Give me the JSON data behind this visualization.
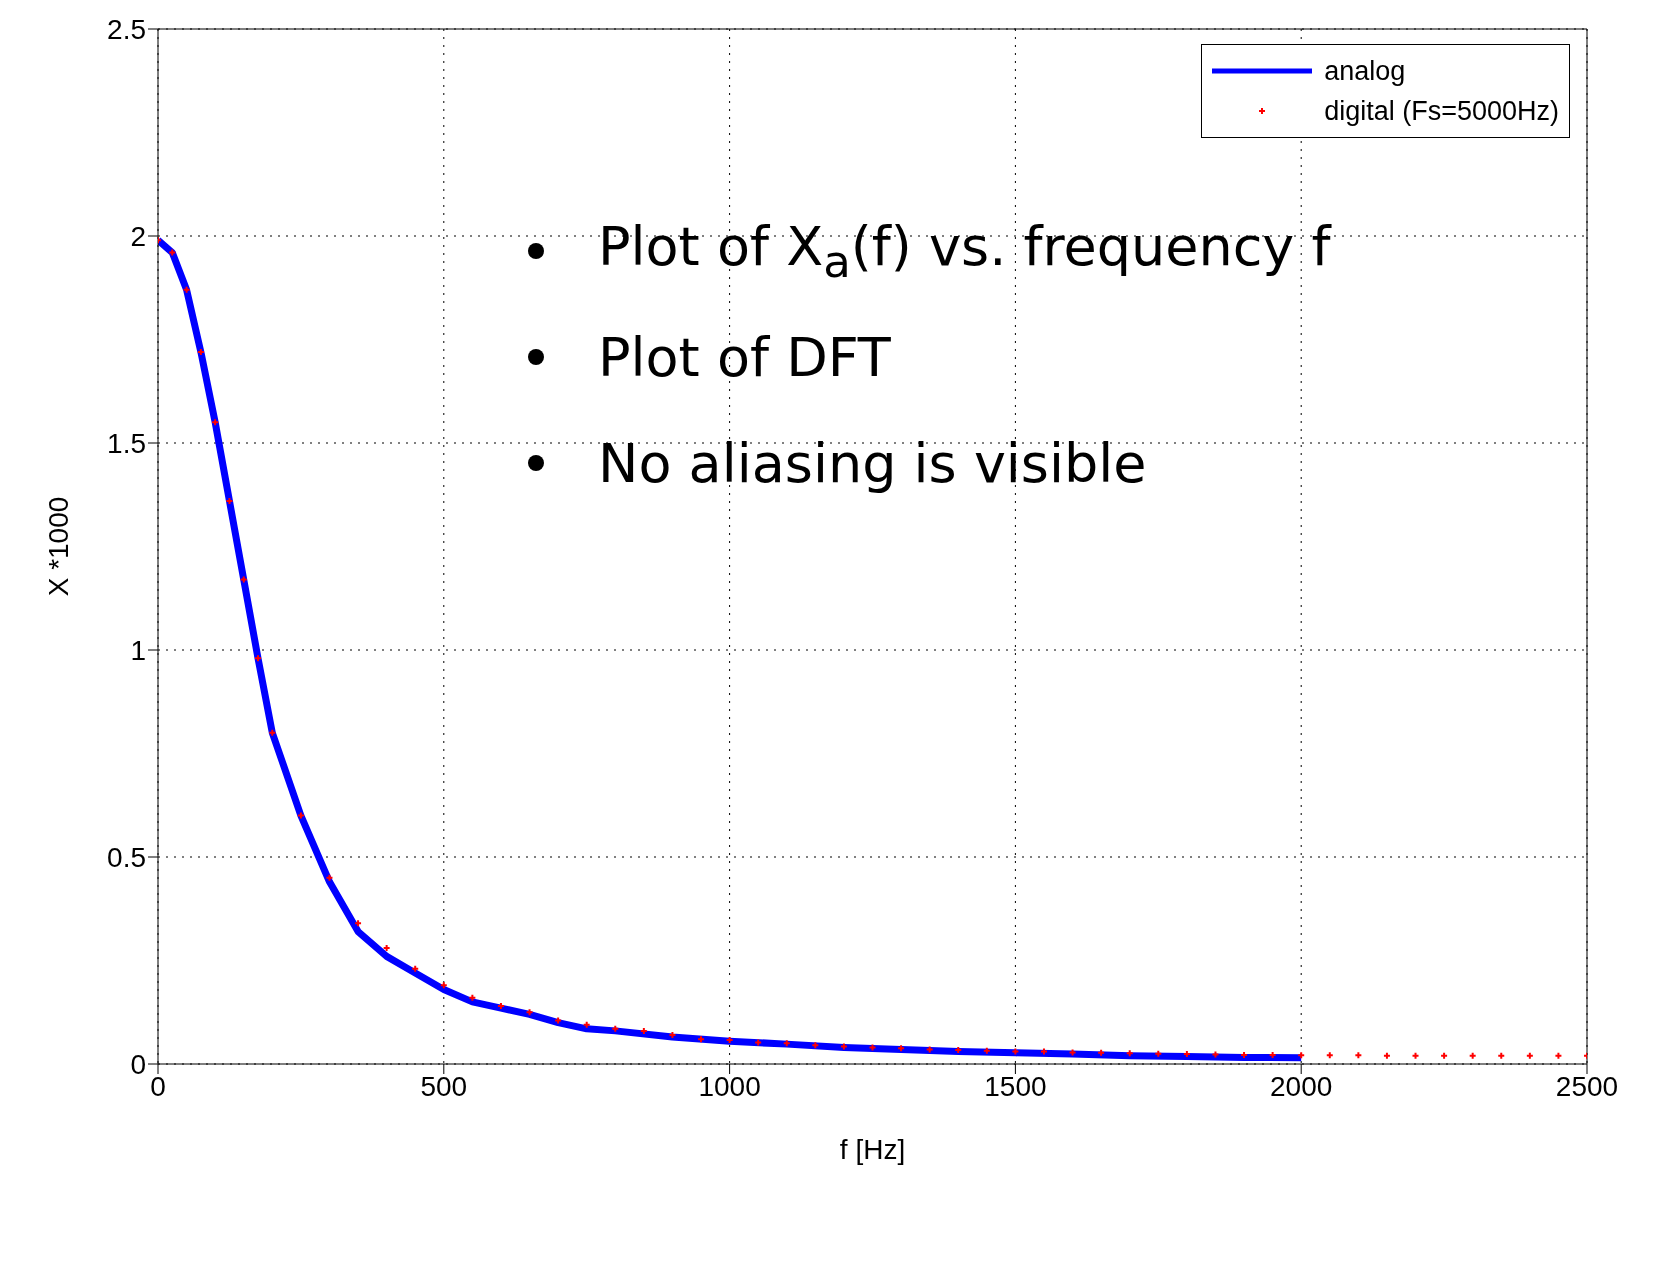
{
  "chart_data": {
    "type": "line",
    "xlabel": "f [Hz]",
    "ylabel": "X *1000",
    "xlim": [
      0,
      2500
    ],
    "xticks": [
      0,
      500,
      1000,
      1500,
      2000,
      2500
    ],
    "ylim": [
      0,
      2.5
    ],
    "yticks": [
      0,
      0.5,
      1,
      1.5,
      2,
      2.5
    ],
    "grid": true,
    "legend": "top right",
    "annotations": [
      "Plot of X$_{a}$(f) vs. frequency f",
      "Plot of DFT",
      "No aliasing is visible"
    ],
    "series": [
      {
        "name": "analog",
        "color": "#0000ff",
        "marker": "none",
        "line_style": "solid",
        "x": [
          0,
          25,
          50,
          75,
          100,
          125,
          150,
          175,
          200,
          250,
          300,
          350,
          400,
          450,
          500,
          550,
          600,
          650,
          700,
          750,
          800,
          900,
          1000,
          1100,
          1200,
          1300,
          1400,
          1500,
          1600,
          1700,
          1800,
          1900,
          2000
        ],
        "values": [
          1.99,
          1.96,
          1.87,
          1.72,
          1.55,
          1.36,
          1.17,
          0.98,
          0.8,
          0.6,
          0.44,
          0.32,
          0.26,
          0.22,
          0.18,
          0.15,
          0.135,
          0.12,
          0.1,
          0.085,
          0.08,
          0.065,
          0.055,
          0.048,
          0.04,
          0.035,
          0.03,
          0.027,
          0.024,
          0.02,
          0.018,
          0.016,
          0.015
        ]
      },
      {
        "name": "digital (Fs=5000Hz)",
        "type": "scatter",
        "color": "#ff0000",
        "marker": "cross",
        "x": [
          0,
          25,
          50,
          75,
          100,
          125,
          150,
          175,
          200,
          250,
          300,
          350,
          400,
          450,
          500,
          550,
          600,
          650,
          700,
          750,
          800,
          850,
          900,
          950,
          1000,
          1050,
          1100,
          1150,
          1200,
          1250,
          1300,
          1350,
          1400,
          1450,
          1500,
          1550,
          1600,
          1650,
          1700,
          1750,
          1800,
          1850,
          1900,
          1950,
          2000,
          2050,
          2100,
          2150,
          2200,
          2250,
          2300,
          2350,
          2400,
          2450,
          2500
        ],
        "values": [
          1.99,
          1.96,
          1.87,
          1.72,
          1.55,
          1.36,
          1.17,
          0.98,
          0.8,
          0.6,
          0.45,
          0.34,
          0.28,
          0.23,
          0.19,
          0.16,
          0.14,
          0.125,
          0.105,
          0.095,
          0.085,
          0.08,
          0.07,
          0.06,
          0.058,
          0.052,
          0.05,
          0.045,
          0.042,
          0.04,
          0.038,
          0.035,
          0.034,
          0.032,
          0.03,
          0.03,
          0.028,
          0.027,
          0.026,
          0.025,
          0.024,
          0.023,
          0.022,
          0.022,
          0.021,
          0.021,
          0.021,
          0.02,
          0.02,
          0.02,
          0.02,
          0.02,
          0.02,
          0.02,
          0.02
        ]
      }
    ]
  }
}
